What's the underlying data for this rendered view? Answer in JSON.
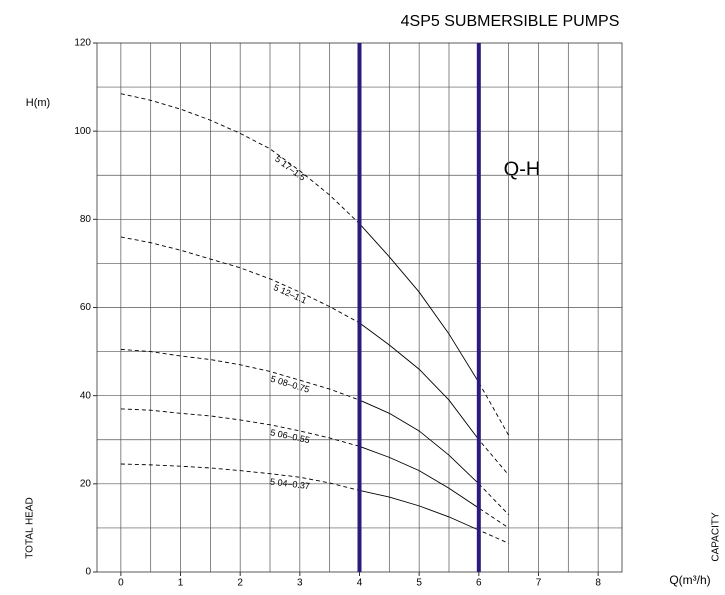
{
  "chart_data": {
    "type": "line",
    "title": "4SP5 SUBMERSIBLE PUMPS",
    "annotation": "Q-H",
    "y_label": "H(m)",
    "y_axis_title": "TOTAL HEAD",
    "x_label": "Q(m³/h)",
    "x_axis_title": "CAPACITY",
    "x": [
      0,
      0.5,
      1,
      1.5,
      2,
      2.5,
      3,
      3.5,
      4,
      4.5,
      5,
      5.5,
      6,
      6.5
    ],
    "series": [
      {
        "name": "5 17–1.5",
        "color": "#000000",
        "values": [
          108.5,
          107,
          105,
          102.5,
          99.5,
          96,
          91,
          85.5,
          79,
          71.5,
          63.5,
          54,
          43,
          31
        ]
      },
      {
        "name": "5 12–1.1",
        "color": "#000000",
        "values": [
          76,
          74.7,
          73,
          71,
          69,
          66.5,
          63.5,
          60.2,
          56.5,
          51.5,
          46,
          39,
          30,
          22
        ]
      },
      {
        "name": "5 08–0.75",
        "color": "#000000",
        "values": [
          50.5,
          50,
          49,
          48.2,
          47,
          45.5,
          43.5,
          41.5,
          39,
          36,
          32,
          26.5,
          20,
          13
        ]
      },
      {
        "name": "5 06–0.55",
        "color": "#000000",
        "values": [
          37,
          36.7,
          36,
          35.4,
          34.5,
          33.4,
          32,
          30.4,
          28.5,
          26,
          23,
          19,
          14.5,
          10
        ]
      },
      {
        "name": "5 04–0.37",
        "color": "#000000",
        "values": [
          24.5,
          24.3,
          24,
          23.6,
          23,
          22.3,
          21.5,
          20.2,
          18.5,
          17,
          15,
          12.5,
          9.5,
          6.5
        ]
      }
    ],
    "vlines": [
      4,
      6
    ],
    "vline_color": "#2e1a7a",
    "xlim": [
      -0.4,
      8.4
    ],
    "ylim": [
      0,
      120
    ],
    "xticks": [
      0,
      1,
      2,
      3,
      4,
      5,
      6,
      7,
      8
    ],
    "yticks": [
      0,
      20,
      40,
      60,
      80,
      100,
      120
    ],
    "x_grid": [
      0,
      0.5,
      1,
      1.5,
      2,
      2.5,
      3,
      3.5,
      4,
      4.5,
      5,
      5.5,
      6,
      6.5,
      7,
      7.5,
      8
    ],
    "y_grid": [
      10,
      20,
      30,
      40,
      50,
      60,
      70,
      80,
      90,
      100,
      110
    ],
    "grid": true
  }
}
